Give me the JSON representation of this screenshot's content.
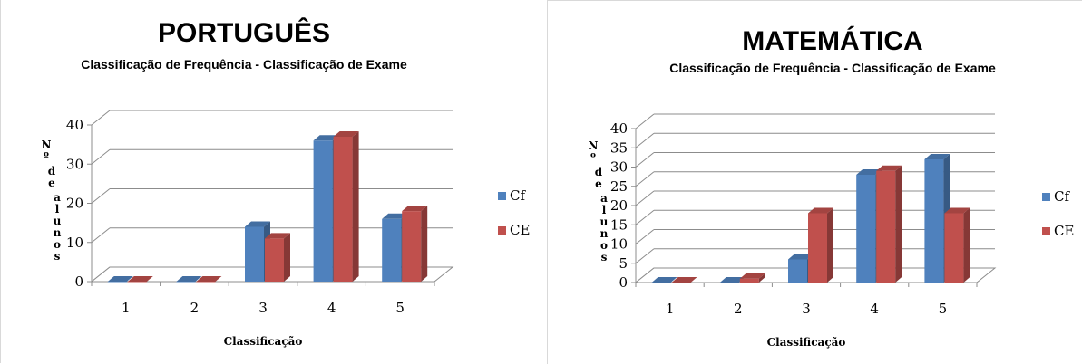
{
  "chart_data": [
    {
      "type": "bar",
      "title": "PORTUGUÊS",
      "subtitle": "Classificação de Frequência - Classificação de Exame",
      "xlabel": "Classificação",
      "ylabel": "Nº de alunos",
      "categories": [
        "1",
        "2",
        "3",
        "4",
        "5"
      ],
      "series": [
        {
          "name": "Cf",
          "values": [
            0,
            0,
            14,
            36,
            16
          ],
          "color": "#4f81bd"
        },
        {
          "name": "CE",
          "values": [
            0,
            0,
            11,
            37,
            18
          ],
          "color": "#c0504d"
        }
      ],
      "ylim": [
        0,
        40
      ],
      "yticks": [
        0,
        10,
        20,
        30,
        40
      ],
      "grid": true,
      "legend": "right"
    },
    {
      "type": "bar",
      "title": "MATEMÁTICA",
      "subtitle": "Classificação de Frequência - Classificação de Exame",
      "xlabel": "Classificação",
      "ylabel": "Nº de alunos",
      "categories": [
        "1",
        "2",
        "3",
        "4",
        "5"
      ],
      "series": [
        {
          "name": "Cf",
          "values": [
            0,
            0,
            6,
            28,
            32
          ],
          "color": "#4f81bd"
        },
        {
          "name": "CE",
          "values": [
            0,
            1,
            18,
            29,
            18
          ],
          "color": "#c0504d"
        }
      ],
      "ylim": [
        0,
        40
      ],
      "yticks": [
        0,
        5,
        10,
        15,
        20,
        25,
        30,
        35,
        40
      ],
      "grid": true,
      "legend": "right"
    }
  ]
}
